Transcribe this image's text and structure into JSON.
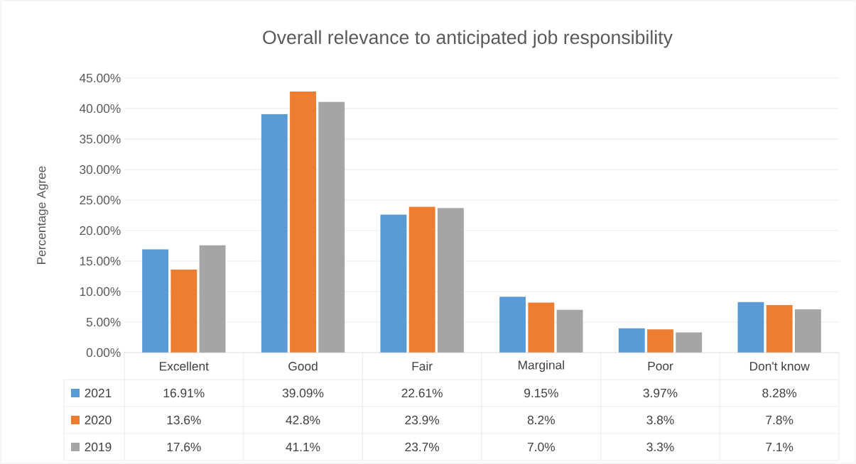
{
  "chart_data": {
    "type": "bar",
    "title": "Overall relevance to anticipated job responsibility",
    "ylabel": "Percentage Agree",
    "categories": [
      "Excellent",
      "Good",
      "Fair",
      "Marginal",
      "Poor",
      "Don't know"
    ],
    "series": [
      {
        "name": "2021",
        "color": "#5b9bd5",
        "values": [
          16.91,
          39.09,
          22.61,
          9.15,
          3.97,
          8.28
        ],
        "value_labels": [
          "16.91%",
          "39.09%",
          "22.61%",
          "9.15%",
          "3.97%",
          "8.28%"
        ]
      },
      {
        "name": "2020",
        "color": "#ed7d31",
        "values": [
          13.6,
          42.8,
          23.9,
          8.2,
          3.8,
          7.8
        ],
        "value_labels": [
          "13.6%",
          "42.8%",
          "23.9%",
          "8.2%",
          "3.8%",
          "7.8%"
        ]
      },
      {
        "name": "2019",
        "color": "#a5a5a5",
        "values": [
          17.6,
          41.1,
          23.7,
          7.0,
          3.3,
          7.1
        ],
        "value_labels": [
          "17.6%",
          "41.1%",
          "23.7%",
          "7.0%",
          "3.3%",
          "7.1%"
        ]
      }
    ],
    "ylim": [
      0,
      45
    ],
    "yticks": [
      {
        "value": 0,
        "label": "0.00%"
      },
      {
        "value": 5,
        "label": "5.00%"
      },
      {
        "value": 10,
        "label": "10.00%"
      },
      {
        "value": 15,
        "label": "15.00%"
      },
      {
        "value": 20,
        "label": "20.00%"
      },
      {
        "value": 25,
        "label": "25.00%"
      },
      {
        "value": 30,
        "label": "30.00%"
      },
      {
        "value": 35,
        "label": "35.00%"
      },
      {
        "value": 40,
        "label": "40.00%"
      },
      {
        "value": 45,
        "label": "45.00%"
      }
    ],
    "grid": "y",
    "legend": "bottom"
  }
}
